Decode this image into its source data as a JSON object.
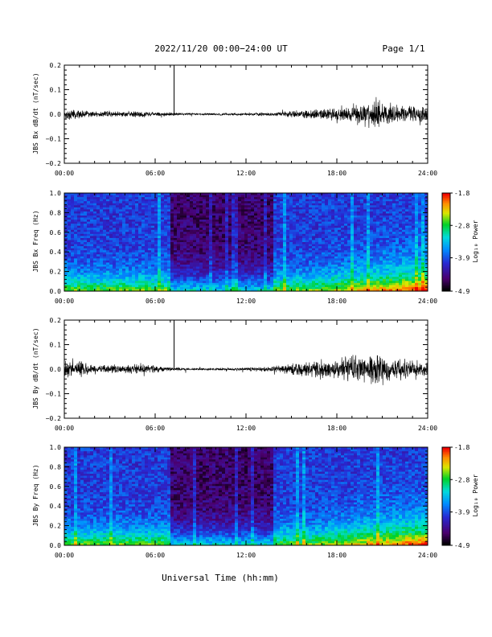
{
  "header": {
    "title": "2022/11/20  00:00−24:00 UT",
    "page": "Page 1/1"
  },
  "footer": {
    "xlabel": "Universal Time (hh:mm)"
  },
  "x_ticks": [
    "00:00",
    "06:00",
    "12:00",
    "18:00",
    "24:00"
  ],
  "colorbar": {
    "ticks": [
      "-1.8",
      "-2.8",
      "-3.9",
      "-4.9"
    ],
    "label": "Log₁₀ Power"
  },
  "chart_data": [
    {
      "type": "line",
      "ylabel": "JBS Bx dB/dt (nT/sec)",
      "xlim": [
        0,
        24
      ],
      "ylim": [
        -0.2,
        0.2
      ],
      "yticks": [
        "0.2",
        "0.1",
        "0.0",
        "−0.1",
        "−0.2"
      ],
      "spike_hour": 7.25,
      "envelope": {
        "x": [
          0,
          1,
          2,
          3,
          4,
          5,
          6,
          7,
          8,
          9,
          10,
          11,
          12,
          13,
          14,
          15,
          16,
          17,
          18,
          19,
          20,
          20.5,
          21,
          22,
          23,
          24
        ],
        "amplitude": [
          0.02,
          0.015,
          0.012,
          0.012,
          0.01,
          0.012,
          0.008,
          0.006,
          0.004,
          0.004,
          0.004,
          0.004,
          0.005,
          0.006,
          0.008,
          0.012,
          0.016,
          0.02,
          0.022,
          0.028,
          0.045,
          0.06,
          0.04,
          0.035,
          0.03,
          0.025
        ]
      }
    },
    {
      "type": "heatmap",
      "ylabel": "JBS Bx Freq (Hz)",
      "xlim": [
        0,
        24
      ],
      "ylim": [
        0,
        1.0
      ],
      "yticks": [
        "1.0",
        "0.8",
        "0.6",
        "0.4",
        "0.2",
        "0.0"
      ],
      "zlim": [
        -4.9,
        -1.8
      ],
      "quiet_interval": [
        7.0,
        13.7
      ]
    },
    {
      "type": "line",
      "ylabel": "JBS By dB/dt (nT/sec)",
      "xlim": [
        0,
        24
      ],
      "ylim": [
        -0.2,
        0.2
      ],
      "yticks": [
        "0.2",
        "0.1",
        "0.0",
        "−0.1",
        "−0.2"
      ],
      "spike_hour": 7.25,
      "envelope": {
        "x": [
          0,
          1,
          2,
          3,
          4,
          5,
          6,
          7,
          8,
          9,
          10,
          11,
          12,
          13,
          14,
          15,
          16,
          17,
          18,
          19,
          20,
          20.5,
          21,
          22,
          23,
          24
        ],
        "amplitude": [
          0.035,
          0.03,
          0.02,
          0.015,
          0.015,
          0.02,
          0.012,
          0.008,
          0.005,
          0.004,
          0.004,
          0.005,
          0.006,
          0.008,
          0.012,
          0.02,
          0.028,
          0.035,
          0.04,
          0.045,
          0.05,
          0.07,
          0.045,
          0.04,
          0.035,
          0.03
        ]
      }
    },
    {
      "type": "heatmap",
      "ylabel": "JBS By Freq (Hz)",
      "xlim": [
        0,
        24
      ],
      "ylim": [
        0,
        1.0
      ],
      "yticks": [
        "1.0",
        "0.8",
        "0.6",
        "0.4",
        "0.2",
        "0.0"
      ],
      "zlim": [
        -4.9,
        -1.8
      ],
      "quiet_interval": [
        7.0,
        13.7
      ]
    }
  ]
}
